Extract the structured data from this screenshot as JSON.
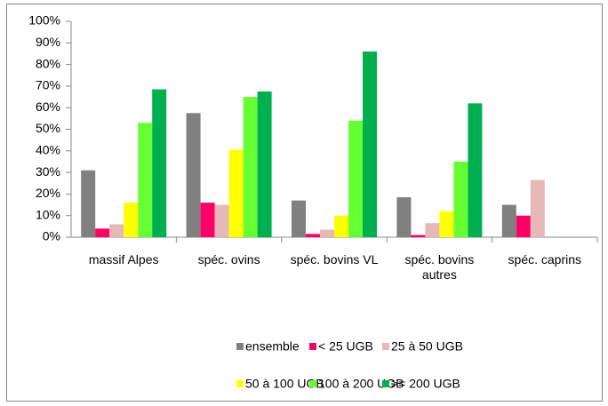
{
  "chart_data": {
    "type": "bar",
    "categories": [
      "massif Alpes",
      "spéc. ovins",
      "spéc. bovins VL",
      "spéc. bovins autres",
      "spéc. caprins"
    ],
    "series": [
      {
        "name": "ensemble",
        "color": "#808080",
        "values": [
          31,
          57.5,
          17,
          18.5,
          15
        ]
      },
      {
        "name": "< 25 UGB",
        "color": "#ff0066",
        "values": [
          4,
          16,
          1.5,
          1,
          10
        ]
      },
      {
        "name": "25 à 50 UGB",
        "color": "#e6b8b8",
        "values": [
          6,
          15,
          3.5,
          6.5,
          26.5
        ]
      },
      {
        "name": "50 à 100 UGB",
        "color": "#ffff00",
        "values": [
          16,
          40.5,
          10,
          12,
          null
        ]
      },
      {
        "name": "100 à 200 UGB",
        "color": "#66ff33",
        "values": [
          53,
          65,
          54,
          35,
          null
        ]
      },
      {
        "name": ">= 200 UGB",
        "color": "#00b050",
        "values": [
          68.5,
          67.5,
          86,
          62,
          null
        ]
      }
    ],
    "ylim": [
      0,
      100
    ],
    "yticks": [
      {
        "value": 0,
        "label": "0%"
      },
      {
        "value": 10,
        "label": "10%"
      },
      {
        "value": 20,
        "label": "20%"
      },
      {
        "value": 30,
        "label": "30%"
      },
      {
        "value": 40,
        "label": "40%"
      },
      {
        "value": 50,
        "label": "50%"
      },
      {
        "value": 60,
        "label": "60%"
      },
      {
        "value": 70,
        "label": "70%"
      },
      {
        "value": 80,
        "label": "80%"
      },
      {
        "value": 90,
        "label": "90%"
      },
      {
        "value": 100,
        "label": "100%"
      }
    ],
    "grid": false,
    "legend": "bottom"
  }
}
